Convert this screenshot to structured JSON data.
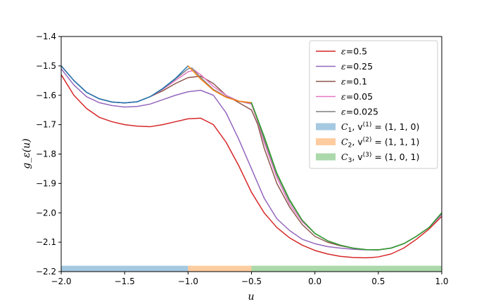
{
  "chart_data": {
    "type": "line",
    "title": "",
    "xlabel": "u",
    "ylabel": "g_ε(u)",
    "xlim": [
      -2.0,
      1.0
    ],
    "ylim": [
      -2.2,
      -1.4
    ],
    "xticks": [
      -2.0,
      -1.5,
      -1.0,
      -0.5,
      0.0,
      0.5,
      1.0
    ],
    "xtick_labels": [
      "−2.0",
      "−1.5",
      "−1.0",
      "−0.5",
      "0.0",
      "0.5",
      "1.0"
    ],
    "yticks": [
      -1.4,
      -1.5,
      -1.6,
      -1.7,
      -1.8,
      -1.9,
      -2.0,
      -2.1,
      -2.2
    ],
    "ytick_labels": [
      "−1.4",
      "−1.5",
      "−1.6",
      "−1.7",
      "−1.8",
      "−1.9",
      "−2.0",
      "−2.1",
      "−2.2"
    ],
    "grid": false,
    "legend_position": "top-right",
    "series": [
      {
        "name": "ε=0.5",
        "eps_label": "0.5",
        "color": "#d62728",
        "points": [
          [
            -2.0,
            -1.53
          ],
          [
            -1.9,
            -1.6
          ],
          [
            -1.8,
            -1.645
          ],
          [
            -1.7,
            -1.675
          ],
          [
            -1.6,
            -1.69
          ],
          [
            -1.5,
            -1.7
          ],
          [
            -1.4,
            -1.705
          ],
          [
            -1.3,
            -1.707
          ],
          [
            -1.2,
            -1.7
          ],
          [
            -1.1,
            -1.69
          ],
          [
            -1.0,
            -1.68
          ],
          [
            -0.9,
            -1.678
          ],
          [
            -0.8,
            -1.7
          ],
          [
            -0.7,
            -1.76
          ],
          [
            -0.6,
            -1.84
          ],
          [
            -0.5,
            -1.93
          ],
          [
            -0.4,
            -2.0
          ],
          [
            -0.3,
            -2.05
          ],
          [
            -0.2,
            -2.085
          ],
          [
            -0.1,
            -2.11
          ],
          [
            0.0,
            -2.128
          ],
          [
            0.1,
            -2.14
          ],
          [
            0.2,
            -2.148
          ],
          [
            0.3,
            -2.152
          ],
          [
            0.4,
            -2.153
          ],
          [
            0.45,
            -2.152
          ],
          [
            0.5,
            -2.15
          ],
          [
            0.6,
            -2.14
          ],
          [
            0.7,
            -2.12
          ],
          [
            0.8,
            -2.09
          ],
          [
            0.9,
            -2.055
          ],
          [
            1.0,
            -2.012
          ]
        ]
      },
      {
        "name": "ε=0.25",
        "eps_label": "0.25",
        "color": "#9467bd",
        "points": [
          [
            -2.0,
            -1.51
          ],
          [
            -1.9,
            -1.565
          ],
          [
            -1.8,
            -1.605
          ],
          [
            -1.7,
            -1.625
          ],
          [
            -1.6,
            -1.635
          ],
          [
            -1.5,
            -1.64
          ],
          [
            -1.4,
            -1.638
          ],
          [
            -1.3,
            -1.63
          ],
          [
            -1.2,
            -1.615
          ],
          [
            -1.1,
            -1.6
          ],
          [
            -1.0,
            -1.588
          ],
          [
            -0.9,
            -1.583
          ],
          [
            -0.8,
            -1.6
          ],
          [
            -0.7,
            -1.66
          ],
          [
            -0.6,
            -1.75
          ],
          [
            -0.5,
            -1.85
          ],
          [
            -0.4,
            -1.95
          ],
          [
            -0.3,
            -2.02
          ],
          [
            -0.2,
            -2.06
          ],
          [
            -0.1,
            -2.09
          ],
          [
            0.0,
            -2.105
          ],
          [
            0.1,
            -2.115
          ],
          [
            0.2,
            -2.12
          ],
          [
            0.3,
            -2.124
          ],
          [
            0.4,
            -2.126
          ],
          [
            0.5,
            -2.126
          ],
          [
            0.6,
            -2.12
          ],
          [
            0.7,
            -2.105
          ],
          [
            0.8,
            -2.08
          ],
          [
            0.9,
            -2.05
          ],
          [
            1.0,
            -2.005
          ]
        ]
      },
      {
        "name": "ε=0.1",
        "eps_label": "0.1",
        "color": "#8c564b",
        "points": [
          [
            -2.0,
            -1.5
          ],
          [
            -1.9,
            -1.55
          ],
          [
            -1.8,
            -1.59
          ],
          [
            -1.7,
            -1.612
          ],
          [
            -1.6,
            -1.623
          ],
          [
            -1.5,
            -1.626
          ],
          [
            -1.4,
            -1.622
          ],
          [
            -1.3,
            -1.605
          ],
          [
            -1.2,
            -1.585
          ],
          [
            -1.1,
            -1.56
          ],
          [
            -1.0,
            -1.54
          ],
          [
            -0.9,
            -1.535
          ],
          [
            -0.8,
            -1.56
          ],
          [
            -0.7,
            -1.6
          ],
          [
            -0.6,
            -1.625
          ],
          [
            -0.5,
            -1.65
          ],
          [
            -0.45,
            -1.7
          ],
          [
            -0.4,
            -1.78
          ],
          [
            -0.3,
            -1.9
          ],
          [
            -0.2,
            -1.98
          ],
          [
            -0.1,
            -2.04
          ],
          [
            0.0,
            -2.08
          ],
          [
            0.1,
            -2.1
          ],
          [
            0.2,
            -2.112
          ],
          [
            0.3,
            -2.12
          ],
          [
            0.4,
            -2.125
          ],
          [
            0.5,
            -2.126
          ],
          [
            0.6,
            -2.12
          ],
          [
            0.7,
            -2.105
          ],
          [
            0.8,
            -2.08
          ],
          [
            0.9,
            -2.05
          ],
          [
            1.0,
            -2.0
          ]
        ]
      },
      {
        "name": "ε=0.05",
        "eps_label": "0.05",
        "color": "#e377c2",
        "points": [
          [
            -2.0,
            -1.5
          ],
          [
            -1.9,
            -1.55
          ],
          [
            -1.8,
            -1.59
          ],
          [
            -1.7,
            -1.612
          ],
          [
            -1.6,
            -1.623
          ],
          [
            -1.5,
            -1.626
          ],
          [
            -1.4,
            -1.622
          ],
          [
            -1.3,
            -1.605
          ],
          [
            -1.2,
            -1.58
          ],
          [
            -1.1,
            -1.55
          ],
          [
            -1.0,
            -1.52
          ],
          [
            -0.95,
            -1.515
          ],
          [
            -0.9,
            -1.53
          ],
          [
            -0.8,
            -1.57
          ],
          [
            -0.7,
            -1.6
          ],
          [
            -0.6,
            -1.62
          ],
          [
            -0.5,
            -1.63
          ],
          [
            -0.45,
            -1.69
          ],
          [
            -0.4,
            -1.76
          ],
          [
            -0.3,
            -1.88
          ],
          [
            -0.2,
            -1.97
          ],
          [
            -0.1,
            -2.03
          ],
          [
            0.0,
            -2.07
          ],
          [
            0.1,
            -2.095
          ],
          [
            0.2,
            -2.11
          ],
          [
            0.3,
            -2.12
          ],
          [
            0.4,
            -2.125
          ],
          [
            0.5,
            -2.126
          ],
          [
            0.6,
            -2.12
          ],
          [
            0.7,
            -2.105
          ],
          [
            0.8,
            -2.08
          ],
          [
            0.9,
            -2.05
          ],
          [
            1.0,
            -2.0
          ]
        ]
      },
      {
        "name": "ε=0.025",
        "eps_label": "0.025",
        "color": "#7f7f7f",
        "points": [
          [
            -2.0,
            -1.5
          ],
          [
            -1.9,
            -1.55
          ],
          [
            -1.8,
            -1.59
          ],
          [
            -1.7,
            -1.612
          ],
          [
            -1.6,
            -1.623
          ],
          [
            -1.5,
            -1.626
          ],
          [
            -1.4,
            -1.622
          ],
          [
            -1.3,
            -1.605
          ],
          [
            -1.2,
            -1.578
          ],
          [
            -1.1,
            -1.545
          ],
          [
            -1.0,
            -1.51
          ],
          [
            -0.97,
            -1.507
          ],
          [
            -0.9,
            -1.54
          ],
          [
            -0.8,
            -1.58
          ],
          [
            -0.7,
            -1.605
          ],
          [
            -0.6,
            -1.62
          ],
          [
            -0.5,
            -1.627
          ],
          [
            -0.47,
            -1.66
          ],
          [
            -0.4,
            -1.75
          ],
          [
            -0.3,
            -1.87
          ],
          [
            -0.2,
            -1.96
          ],
          [
            -0.1,
            -2.025
          ],
          [
            0.0,
            -2.07
          ],
          [
            0.1,
            -2.095
          ],
          [
            0.2,
            -2.11
          ],
          [
            0.3,
            -2.12
          ],
          [
            0.4,
            -2.125
          ],
          [
            0.5,
            -2.126
          ],
          [
            0.6,
            -2.12
          ],
          [
            0.7,
            -2.105
          ],
          [
            0.8,
            -2.08
          ],
          [
            0.9,
            -2.05
          ],
          [
            1.0,
            -2.0
          ]
        ]
      },
      {
        "name": "C1 segment",
        "color": "#1f77b4",
        "in_legend": false,
        "points": [
          [
            -2.0,
            -1.5
          ],
          [
            -1.9,
            -1.55
          ],
          [
            -1.8,
            -1.59
          ],
          [
            -1.7,
            -1.612
          ],
          [
            -1.6,
            -1.623
          ],
          [
            -1.5,
            -1.626
          ],
          [
            -1.4,
            -1.622
          ],
          [
            -1.3,
            -1.605
          ],
          [
            -1.2,
            -1.577
          ],
          [
            -1.1,
            -1.543
          ],
          [
            -1.0,
            -1.5
          ]
        ]
      },
      {
        "name": "C2 segment",
        "color": "#ff7f0e",
        "in_legend": false,
        "points": [
          [
            -1.0,
            -1.5
          ],
          [
            -0.9,
            -1.545
          ],
          [
            -0.8,
            -1.583
          ],
          [
            -0.7,
            -1.607
          ],
          [
            -0.6,
            -1.62
          ],
          [
            -0.5,
            -1.625
          ]
        ]
      },
      {
        "name": "C3 segment",
        "color": "#2ca02c",
        "in_legend": false,
        "points": [
          [
            -0.5,
            -1.625
          ],
          [
            -0.4,
            -1.74
          ],
          [
            -0.3,
            -1.865
          ],
          [
            -0.2,
            -1.955
          ],
          [
            -0.1,
            -2.025
          ],
          [
            0.0,
            -2.07
          ],
          [
            0.1,
            -2.095
          ],
          [
            0.2,
            -2.11
          ],
          [
            0.3,
            -2.12
          ],
          [
            0.4,
            -2.125
          ],
          [
            0.5,
            -2.126
          ],
          [
            0.6,
            -2.12
          ],
          [
            0.7,
            -2.105
          ],
          [
            0.8,
            -2.08
          ],
          [
            0.9,
            -2.05
          ],
          [
            1.0,
            -2.0
          ]
        ]
      }
    ],
    "regions": [
      {
        "name": "C1",
        "legend_cal": "C",
        "legend_sub": "1",
        "legend_rest": ", v",
        "legend_sup": "(1)",
        "legend_value": " = (1, 1, 0)",
        "from": -2.0,
        "to": -1.0,
        "color": "#1f77b4"
      },
      {
        "name": "C2",
        "legend_cal": "C",
        "legend_sub": "2",
        "legend_rest": ", v",
        "legend_sup": "(2)",
        "legend_value": " = (1, 1, 1)",
        "from": -1.0,
        "to": -0.5,
        "color": "#ff7f0e"
      },
      {
        "name": "C3",
        "legend_cal": "C",
        "legend_sub": "3",
        "legend_rest": ", v",
        "legend_sup": "(3)",
        "legend_value": " = (1, 0, 1)",
        "from": -0.5,
        "to": 1.0,
        "color": "#2ca02c"
      }
    ],
    "region_band": {
      "y_from": -2.2,
      "y_to": -2.18
    }
  }
}
